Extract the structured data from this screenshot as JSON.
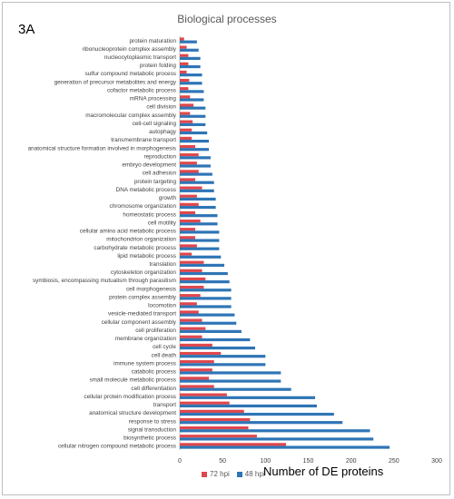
{
  "panel_label": "3A",
  "chart_data": {
    "type": "bar",
    "orientation": "horizontal",
    "title": "Biological processes",
    "xlabel": "Number of DE proteins",
    "ylabel": "",
    "xlim": [
      0,
      300
    ],
    "xticks": [
      "0",
      "50",
      "100",
      "150",
      "200",
      "250",
      "300"
    ],
    "grid": false,
    "legend_position": "bottom",
    "categories": [
      "protein maturation",
      "ribonucleoprotein complex assembly",
      "nucleocytoplasmic transport",
      "protein folding",
      "sulfur compound metabolic process",
      "generation of precursor metabolites and energy",
      "cofactor metabolic process",
      "mRNA processing",
      "cell division",
      "macromolecular complex assembly",
      "cell-cell signaling",
      "autophagy",
      "transmembrane transport",
      "anatomical structure formation involved in morphogenesis",
      "reproduction",
      "embryo development",
      "cell adhesion",
      "protein targeting",
      "DNA metabolic process",
      "growth",
      "chromosome organization",
      "homeostatic process",
      "cell motility",
      "cellular amino acid metabolic process",
      "mitochondrion organization",
      "carbohydrate metabolic process",
      "lipid metabolic process",
      "translation",
      "cytoskeleton organization",
      "symbiosis, encompassing mutualism through parasitism",
      "cell morphogenesis",
      "protein complex assembly",
      "locomotion",
      "vesicle-mediated transport",
      "cellular component assembly",
      "cell proliferation",
      "membrane organization",
      "cell cycle",
      "cell death",
      "immune system process",
      "catabolic process",
      "small molecule metabolic process",
      "cell differentiation",
      "cellular protein modification process",
      "transport",
      "anatomical structure development",
      "response to stress",
      "signal transduction",
      "biosynthetic process",
      "cellular nitrogen compound metabolic process"
    ],
    "series": [
      {
        "name": "72 hpi",
        "color": "#e0474c",
        "values": [
          5,
          8,
          10,
          10,
          8,
          11,
          10,
          12,
          16,
          12,
          15,
          14,
          14,
          18,
          22,
          20,
          22,
          18,
          26,
          20,
          22,
          18,
          24,
          18,
          18,
          20,
          14,
          28,
          26,
          30,
          28,
          24,
          20,
          22,
          26,
          30,
          26,
          38,
          48,
          40,
          38,
          34,
          40,
          55,
          58,
          75,
          82,
          80,
          90,
          124
        ]
      },
      {
        "name": "48 hpi",
        "color": "#2e75b6",
        "values": [
          20,
          22,
          24,
          24,
          26,
          26,
          28,
          28,
          30,
          30,
          30,
          32,
          34,
          34,
          36,
          36,
          38,
          40,
          40,
          42,
          42,
          44,
          44,
          46,
          46,
          46,
          48,
          52,
          56,
          58,
          60,
          60,
          60,
          64,
          66,
          72,
          82,
          88,
          100,
          100,
          118,
          118,
          130,
          158,
          160,
          180,
          190,
          222,
          226,
          245
        ]
      }
    ]
  }
}
